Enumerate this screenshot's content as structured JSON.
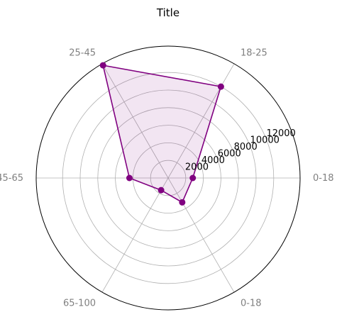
{
  "chart_data": {
    "type": "radar",
    "title": "Title",
    "categories": [
      "0-18",
      "18-25",
      "25-45",
      "45-65",
      "65-100",
      "0-18"
    ],
    "series": [
      {
        "values": [
          2800,
          12000,
          14800,
          4400,
          1600,
          3200
        ]
      }
    ],
    "radial_ticks": [
      "2000",
      "4000",
      "6000",
      "8000",
      "10000",
      "12000"
    ],
    "rlim": [
      0,
      15000
    ],
    "grid": true,
    "colors": {
      "line": "#800080",
      "fill": "#800080",
      "grid": "#b0b0b0",
      "outline": "#000000"
    }
  }
}
